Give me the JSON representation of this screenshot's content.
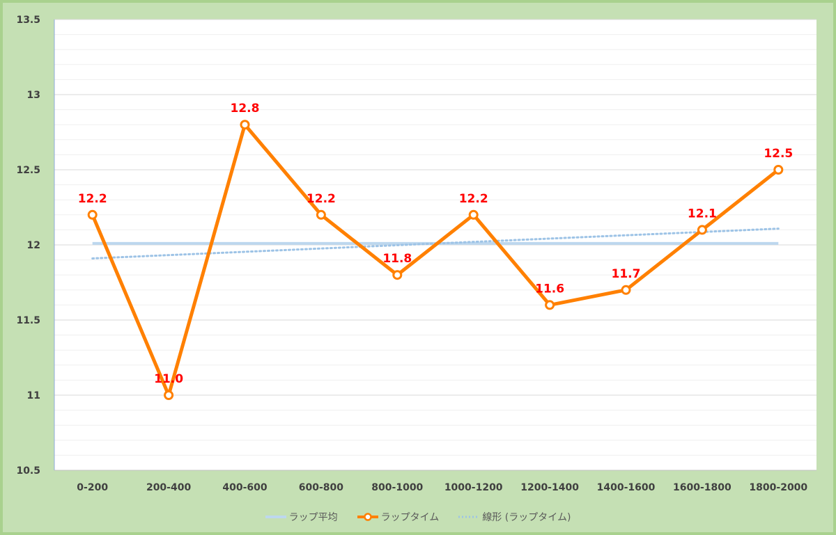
{
  "chart_data": {
    "type": "line",
    "categories": [
      "0-200",
      "200-400",
      "400-600",
      "600-800",
      "800-1000",
      "1000-1200",
      "1200-1400",
      "1400-1600",
      "1600-1800",
      "1800-2000"
    ],
    "series": [
      {
        "name": "ラップ平均",
        "values": [
          12.01,
          12.01,
          12.01,
          12.01,
          12.01,
          12.01,
          12.01,
          12.01,
          12.01,
          12.01
        ],
        "color": "#bdd7ee",
        "style": "solid"
      },
      {
        "name": "ラップタイム",
        "values": [
          12.2,
          11.0,
          12.8,
          12.2,
          11.8,
          12.2,
          11.6,
          11.7,
          12.1,
          12.5
        ],
        "labels": [
          "12.2",
          "11.0",
          "12.8",
          "12.2",
          "11.8",
          "12.2",
          "11.6",
          "11.7",
          "12.1",
          "12.5"
        ],
        "color": "#ff8000",
        "label_color": "#ff0000",
        "markers": true
      },
      {
        "name": "線形 (ラップタイム)",
        "values": [
          11.91,
          11.932,
          11.954,
          11.976,
          11.998,
          12.02,
          12.042,
          12.064,
          12.086,
          12.108
        ],
        "color": "#9dc3e6",
        "style": "dotted"
      }
    ],
    "y_ticks": [
      "10.5",
      "11",
      "11.5",
      "12",
      "12.5",
      "13",
      "13.5"
    ],
    "ylim": [
      10.5,
      13.5
    ],
    "minor_gridlines": true,
    "legend": "bottom",
    "colors": {
      "frame": "#c5e0b4",
      "frame_border": "#a9d18e",
      "plot": "#ffffff",
      "grid": "#d9d9d9"
    }
  }
}
